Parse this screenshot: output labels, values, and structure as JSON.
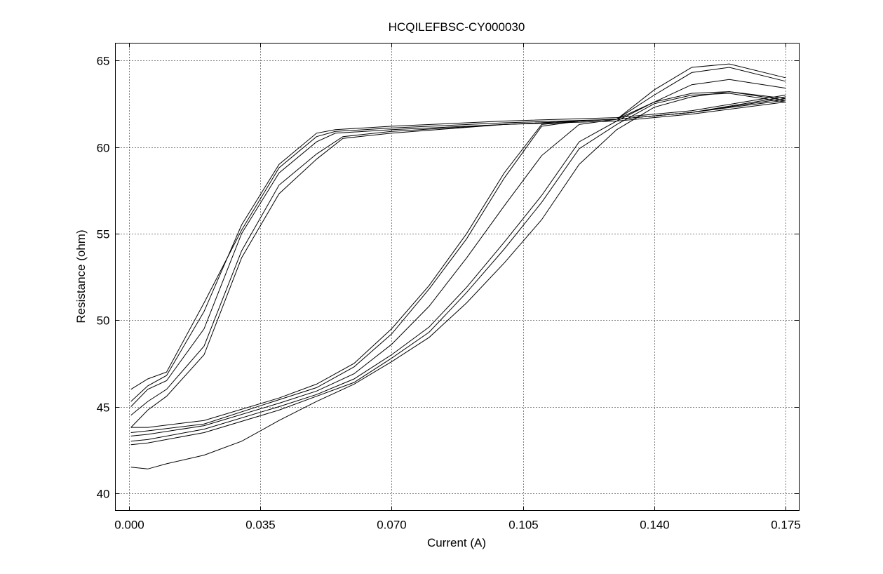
{
  "chart_data": {
    "type": "line",
    "title": "HCQILEFBSC-CY000030",
    "xlabel": "Current (A)",
    "ylabel": "Resistance (ohm)",
    "xlim": [
      0.0,
      0.175
    ],
    "ylim": [
      39,
      66
    ],
    "xticks": [
      0.0,
      0.035,
      0.07,
      0.105,
      0.14,
      0.175
    ],
    "xtick_labels": [
      "0.000",
      "0.035",
      "0.070",
      "0.105",
      "0.140",
      "0.175"
    ],
    "yticks": [
      40,
      45,
      50,
      55,
      60,
      65
    ],
    "ytick_labels": [
      "40",
      "45",
      "50",
      "55",
      "60",
      "65"
    ],
    "grid": true,
    "legend": "none",
    "series": [
      {
        "x": [
          0.0005,
          0.005,
          0.01,
          0.02,
          0.03,
          0.04,
          0.05,
          0.055,
          0.07,
          0.1,
          0.13,
          0.15,
          0.175
        ],
        "y": [
          45.0,
          46.0,
          46.5,
          49.5,
          55.0,
          58.5,
          60.3,
          60.8,
          61.0,
          61.3,
          61.6,
          62.0,
          62.8
        ]
      },
      {
        "x": [
          0.0005,
          0.005,
          0.01,
          0.02,
          0.03,
          0.04,
          0.05,
          0.055,
          0.07,
          0.1,
          0.13,
          0.15,
          0.175
        ],
        "y": [
          46.0,
          46.6,
          47.0,
          51.0,
          55.2,
          58.8,
          60.6,
          60.9,
          61.1,
          61.4,
          61.6,
          62.0,
          62.9
        ]
      },
      {
        "x": [
          0.0005,
          0.005,
          0.01,
          0.02,
          0.03,
          0.04,
          0.05,
          0.057,
          0.07,
          0.1,
          0.13,
          0.15,
          0.175
        ],
        "y": [
          44.5,
          45.3,
          46.0,
          48.5,
          54.0,
          57.8,
          59.6,
          60.6,
          60.9,
          61.3,
          61.6,
          62.0,
          62.7
        ]
      },
      {
        "x": [
          0.0005,
          0.005,
          0.01,
          0.02,
          0.03,
          0.04,
          0.05,
          0.057,
          0.07,
          0.1,
          0.13,
          0.15,
          0.175
        ],
        "y": [
          43.8,
          44.8,
          45.6,
          48.0,
          53.6,
          57.3,
          59.3,
          60.5,
          60.8,
          61.3,
          61.5,
          61.9,
          62.6
        ]
      },
      {
        "x": [
          0.0005,
          0.005,
          0.01,
          0.02,
          0.03,
          0.04,
          0.05,
          0.055,
          0.07,
          0.1,
          0.13,
          0.15,
          0.175
        ],
        "y": [
          45.3,
          46.2,
          46.8,
          50.5,
          55.5,
          59.0,
          60.8,
          61.0,
          61.2,
          61.5,
          61.7,
          62.1,
          63.0
        ]
      },
      {
        "x": [
          0.0005,
          0.005,
          0.02,
          0.04,
          0.05,
          0.06,
          0.07,
          0.08,
          0.09,
          0.1,
          0.11,
          0.12,
          0.13,
          0.14,
          0.15,
          0.16,
          0.175
        ],
        "y": [
          43.8,
          43.8,
          44.2,
          45.5,
          46.3,
          47.5,
          49.5,
          52.0,
          55.0,
          58.5,
          61.3,
          61.5,
          61.6,
          63.3,
          64.6,
          64.8,
          64.0
        ]
      },
      {
        "x": [
          0.0005,
          0.005,
          0.02,
          0.04,
          0.05,
          0.06,
          0.07,
          0.08,
          0.09,
          0.1,
          0.11,
          0.12,
          0.13,
          0.14,
          0.15,
          0.16,
          0.175
        ],
        "y": [
          43.5,
          43.6,
          44.0,
          45.4,
          46.1,
          47.3,
          49.2,
          51.8,
          54.7,
          58.2,
          61.2,
          61.5,
          61.6,
          63.0,
          64.3,
          64.6,
          63.8
        ]
      },
      {
        "x": [
          0.0005,
          0.005,
          0.02,
          0.04,
          0.05,
          0.06,
          0.07,
          0.08,
          0.09,
          0.1,
          0.11,
          0.12,
          0.13,
          0.14,
          0.15,
          0.16,
          0.175
        ],
        "y": [
          43.3,
          43.4,
          43.9,
          45.2,
          45.9,
          46.9,
          48.6,
          50.8,
          53.6,
          56.6,
          59.5,
          61.3,
          61.6,
          62.6,
          63.6,
          63.9,
          63.4
        ]
      },
      {
        "x": [
          0.0005,
          0.005,
          0.02,
          0.04,
          0.05,
          0.06,
          0.07,
          0.08,
          0.09,
          0.1,
          0.11,
          0.12,
          0.13,
          0.14,
          0.15,
          0.16,
          0.175
        ],
        "y": [
          43.0,
          43.1,
          43.7,
          45.0,
          45.7,
          46.6,
          48.0,
          49.6,
          51.9,
          54.5,
          57.2,
          60.3,
          61.5,
          62.6,
          63.1,
          63.2,
          62.8
        ]
      },
      {
        "x": [
          0.0005,
          0.005,
          0.02,
          0.04,
          0.05,
          0.06,
          0.07,
          0.08,
          0.09,
          0.1,
          0.11,
          0.12,
          0.13,
          0.14,
          0.15,
          0.16,
          0.175
        ],
        "y": [
          42.8,
          42.9,
          43.5,
          44.8,
          45.6,
          46.4,
          47.8,
          49.3,
          51.6,
          54.1,
          56.8,
          59.9,
          61.3,
          62.5,
          63.0,
          63.1,
          62.6
        ]
      },
      {
        "x": [
          0.0005,
          0.005,
          0.01,
          0.02,
          0.03,
          0.04,
          0.05,
          0.06,
          0.07,
          0.08,
          0.09,
          0.1,
          0.11,
          0.12,
          0.13,
          0.14,
          0.15,
          0.16,
          0.175
        ],
        "y": [
          41.5,
          41.4,
          41.7,
          42.2,
          43.0,
          44.2,
          45.3,
          46.3,
          47.6,
          49.0,
          51.0,
          53.3,
          55.8,
          59.0,
          61.0,
          62.3,
          62.9,
          63.2,
          62.7
        ]
      }
    ]
  }
}
